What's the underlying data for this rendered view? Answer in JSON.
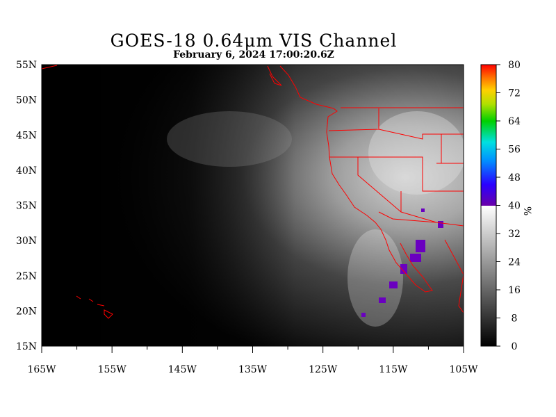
{
  "header": {
    "title": "GOES-18  0.64μm VIS Channel",
    "subtitle": "February  6,  2024 17:00:20.6Z"
  },
  "map": {
    "lon_range": [
      -165,
      -105
    ],
    "lat_range": [
      15,
      55
    ],
    "lon_ticks": [
      {
        "value": -165,
        "label": "165W"
      },
      {
        "value": -155,
        "label": "155W"
      },
      {
        "value": -145,
        "label": "145W"
      },
      {
        "value": -135,
        "label": "135W"
      },
      {
        "value": -125,
        "label": "125W"
      },
      {
        "value": -115,
        "label": "115W"
      },
      {
        "value": -105,
        "label": "105W"
      }
    ],
    "lat_ticks": [
      {
        "value": 55,
        "label": "55N"
      },
      {
        "value": 50,
        "label": "50N"
      },
      {
        "value": 45,
        "label": "45N"
      },
      {
        "value": 40,
        "label": "40N"
      },
      {
        "value": 35,
        "label": "35N"
      },
      {
        "value": 30,
        "label": "30N"
      },
      {
        "value": 25,
        "label": "25N"
      },
      {
        "value": 20,
        "label": "20N"
      },
      {
        "value": 15,
        "label": "15N"
      }
    ],
    "boundary_color": "#ff0000"
  },
  "colorbar": {
    "range": [
      0,
      80
    ],
    "unit": "%",
    "ticks": [
      {
        "value": 80,
        "label": "80"
      },
      {
        "value": 72,
        "label": "72"
      },
      {
        "value": 64,
        "label": "64"
      },
      {
        "value": 56,
        "label": "56"
      },
      {
        "value": 48,
        "label": "48"
      },
      {
        "value": 40,
        "label": "40"
      },
      {
        "value": 32,
        "label": "32"
      },
      {
        "value": 24,
        "label": "24"
      },
      {
        "value": 16,
        "label": "16"
      },
      {
        "value": 8,
        "label": "8"
      },
      {
        "value": 0,
        "label": "0"
      }
    ]
  }
}
